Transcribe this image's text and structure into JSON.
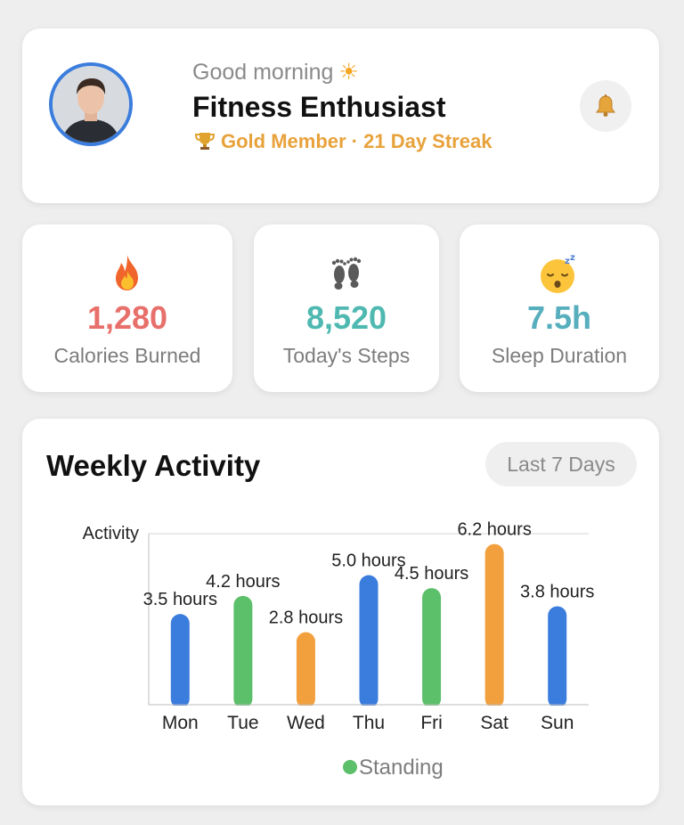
{
  "header": {
    "greeting": "Good morning",
    "name": "Fitness Enthusiast",
    "membership": "Gold Member · 21 Day Streak"
  },
  "stats": [
    {
      "icon": "fire-icon",
      "value": "1,280",
      "label": "Calories Burned",
      "color": "#e8706b"
    },
    {
      "icon": "footprints-icon",
      "value": "8,520",
      "label": "Today's Steps",
      "color": "#4fb9b1"
    },
    {
      "icon": "sleeping-face-icon",
      "value": "7.5h",
      "label": "Sleep Duration",
      "color": "#57aebd"
    }
  ],
  "weekly": {
    "title": "Weekly Activity",
    "range": "Last 7 Days"
  },
  "chart_data": {
    "type": "bar",
    "ylabel": "Activity",
    "categories": [
      "Mon",
      "Tue",
      "Wed",
      "Thu",
      "Fri",
      "Sat",
      "Sun"
    ],
    "values": [
      3.5,
      4.2,
      2.8,
      5.0,
      4.5,
      6.2,
      3.8
    ],
    "value_labels": [
      "3.5 hours",
      "4.2 hours",
      "2.8 hours",
      "5.0 hours",
      "4.5 hours",
      "6.2 hours",
      "3.8 hours"
    ],
    "bar_colors": [
      "#3b7ddd",
      "#5cbf6a",
      "#f2a03d",
      "#3b7ddd",
      "#5cbf6a",
      "#f2a03d",
      "#3b7ddd"
    ],
    "ylim": [
      0,
      6.6
    ],
    "grid": false,
    "legend": [
      {
        "name": "Standing",
        "color": "#5cbf6a"
      }
    ],
    "legend_position": "bottom"
  }
}
